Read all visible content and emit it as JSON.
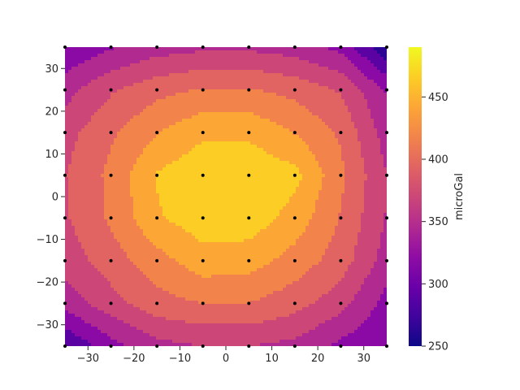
{
  "chart_data": {
    "type": "contour",
    "x": [
      -35,
      -25,
      -15,
      -5,
      5,
      15,
      25,
      35
    ],
    "y": [
      35,
      25,
      15,
      5,
      -5,
      -15,
      -25,
      -35
    ],
    "xlim": [
      -35,
      35
    ],
    "ylim": [
      -35,
      35
    ],
    "xticks": [
      -30,
      -20,
      -10,
      0,
      10,
      20,
      30
    ],
    "yticks": [
      -30,
      -20,
      -10,
      0,
      10,
      20,
      30
    ],
    "grid": false,
    "values": [
      [
        302,
        322,
        338,
        345,
        345,
        338,
        318,
        255
      ],
      [
        340,
        372,
        392,
        402,
        402,
        392,
        372,
        322
      ],
      [
        366,
        396,
        424,
        445,
        445,
        424,
        396,
        338
      ],
      [
        374,
        406,
        452,
        470,
        470,
        458,
        406,
        350
      ],
      [
        372,
        404,
        447,
        465,
        465,
        440,
        398,
        348
      ],
      [
        360,
        388,
        415,
        440,
        436,
        415,
        388,
        338
      ],
      [
        335,
        365,
        390,
        400,
        400,
        385,
        360,
        315
      ],
      [
        275,
        315,
        342,
        350,
        350,
        342,
        318,
        300
      ]
    ],
    "levels": [
      250,
      275,
      300,
      325,
      350,
      375,
      400,
      425,
      450,
      475,
      500
    ],
    "level_colors": [
      "#2a0593",
      "#5b02a3",
      "#8b0aa5",
      "#b12a90",
      "#cc4778",
      "#e16462",
      "#f2844b",
      "#fca636",
      "#fcce25",
      "#f0f921"
    ],
    "colorbar": {
      "label": "microGal",
      "range": [
        250,
        490
      ],
      "ticks": [
        250,
        300,
        350,
        400,
        450
      ],
      "cmap": "plasma"
    },
    "station_marker_color": "#000000"
  }
}
